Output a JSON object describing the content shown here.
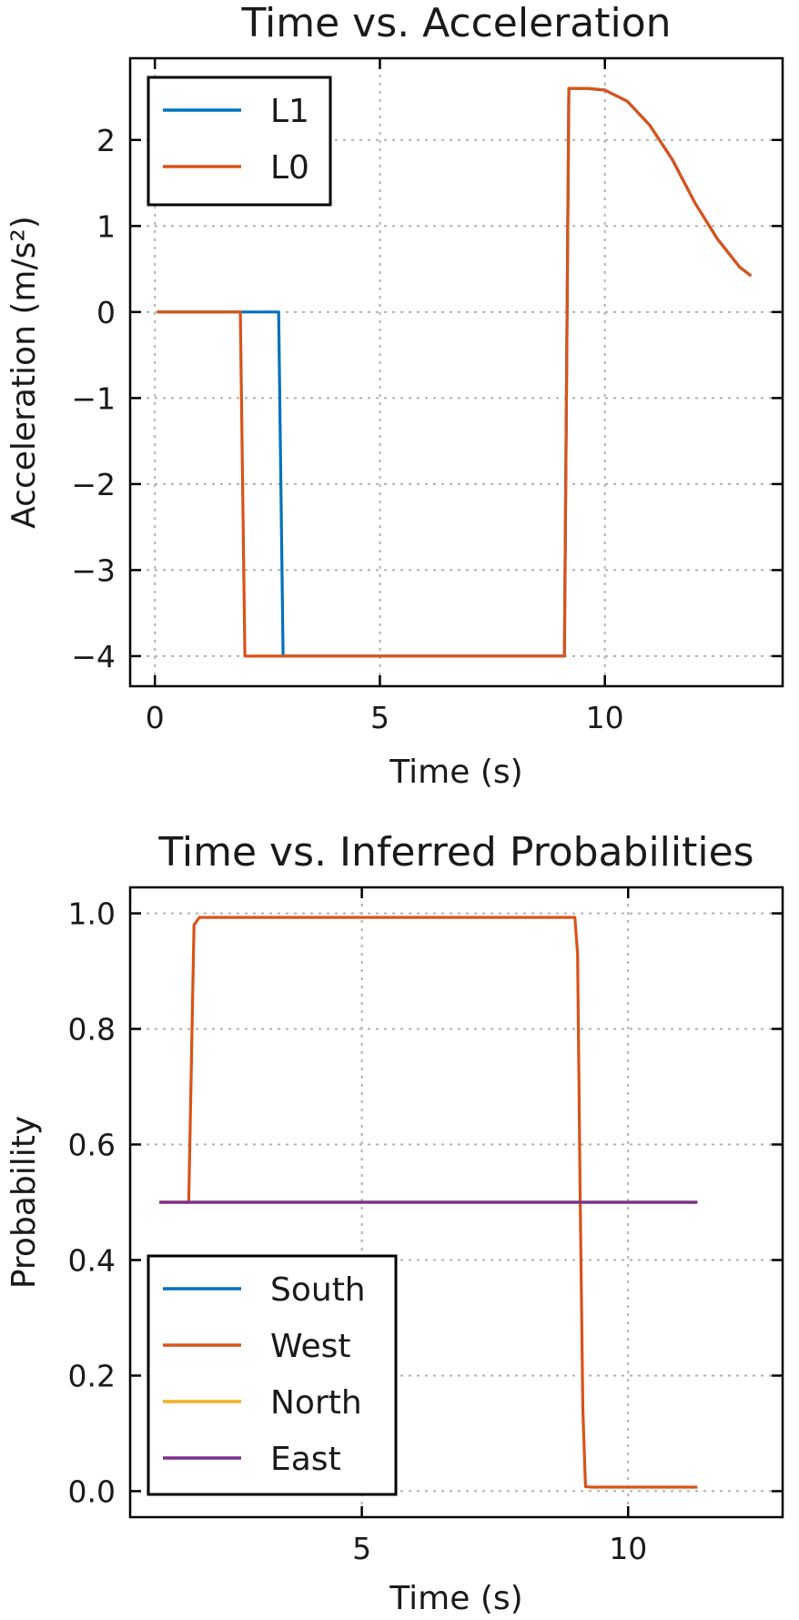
{
  "chart_data": [
    {
      "type": "line",
      "title": "Time vs. Acceleration",
      "xlabel": "Time (s)",
      "ylabel": "Acceleration (m/s²)",
      "xlim": [
        -0.55,
        13.95
      ],
      "ylim": [
        -4.35,
        2.95
      ],
      "xticks": [
        0,
        5,
        10
      ],
      "yticks": [
        -4,
        -3,
        -2,
        -1,
        0,
        1,
        2
      ],
      "grid": true,
      "legend_position": "top-left",
      "series": [
        {
          "name": "L1",
          "color": "#0072BD",
          "x": [
            0.05,
            2.75,
            2.85,
            9.1,
            9.2,
            9.6,
            10.0,
            10.5,
            11.0,
            11.5,
            12.0,
            12.5,
            13.0,
            13.25
          ],
          "y": [
            0,
            0,
            -4,
            -4,
            2.6,
            2.6,
            2.58,
            2.45,
            2.17,
            1.77,
            1.27,
            0.85,
            0.52,
            0.42
          ]
        },
        {
          "name": "L0",
          "color": "#D95319",
          "x": [
            0.05,
            1.9,
            2.0,
            9.1,
            9.2,
            9.6,
            10.0,
            10.5,
            11.0,
            11.5,
            12.0,
            12.5,
            13.0,
            13.25
          ],
          "y": [
            0,
            0,
            -4,
            -4,
            2.6,
            2.6,
            2.58,
            2.45,
            2.17,
            1.77,
            1.27,
            0.85,
            0.52,
            0.42
          ]
        }
      ]
    },
    {
      "type": "line",
      "title": "Time vs. Inferred Probabilities",
      "xlabel": "Time (s)",
      "ylabel": "Probability",
      "xlim": [
        0.65,
        12.9
      ],
      "ylim": [
        -0.045,
        1.045
      ],
      "xticks": [
        5,
        10
      ],
      "yticks": [
        0.0,
        0.2,
        0.4,
        0.6,
        0.8,
        1.0
      ],
      "ytick_labels": [
        "0.0",
        "0.2",
        "0.4",
        "0.6",
        "0.8",
        "1.0"
      ],
      "grid": true,
      "legend_position": "bottom-left",
      "series": [
        {
          "name": "South",
          "color": "#0072BD",
          "x": [
            1.2,
            11.3
          ],
          "y": [
            0.5,
            0.5
          ]
        },
        {
          "name": "West",
          "color": "#D95319",
          "x": [
            1.2,
            1.75,
            1.85,
            1.95,
            9.0,
            9.05,
            9.1,
            9.15,
            9.2,
            9.3,
            11.3
          ],
          "y": [
            0.5,
            0.5,
            0.98,
            0.993,
            0.993,
            0.93,
            0.5,
            0.14,
            0.008,
            0.007,
            0.007
          ]
        },
        {
          "name": "North",
          "color": "#EDB120",
          "x": [
            1.2,
            11.3
          ],
          "y": [
            0.5,
            0.5
          ]
        },
        {
          "name": "East",
          "color": "#7E2F8E",
          "x": [
            1.2,
            11.3
          ],
          "y": [
            0.5,
            0.5
          ]
        }
      ]
    }
  ]
}
